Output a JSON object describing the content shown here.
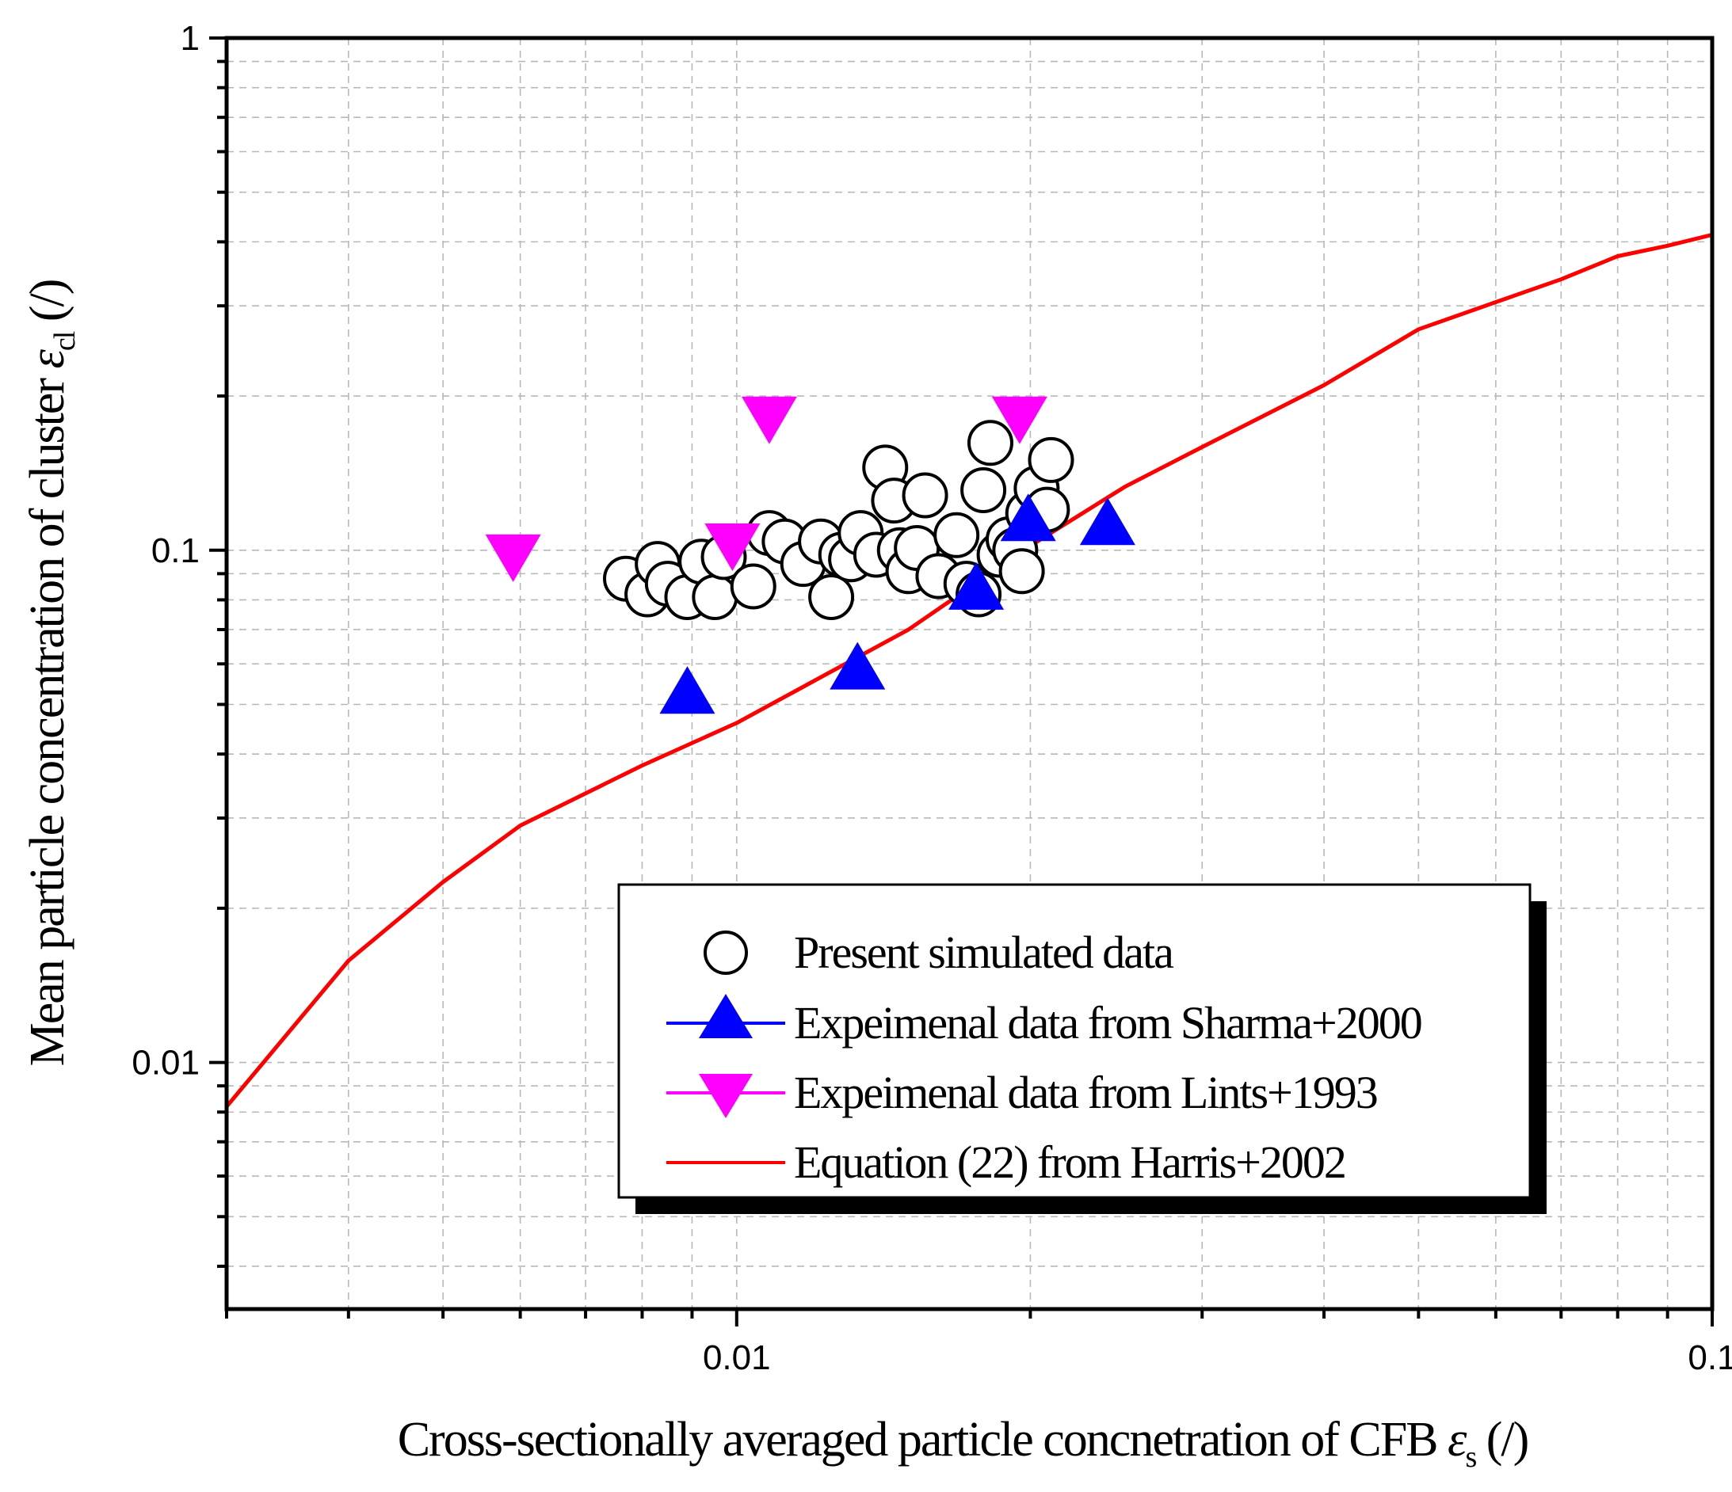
{
  "chart_data": {
    "type": "scatter",
    "xscale": "log",
    "yscale": "log",
    "xlim": [
      0.003,
      0.1
    ],
    "ylim": [
      0.0033,
      1
    ],
    "xlabel": {
      "main": "Cross-sectionally averaged particle concnetration of CFB ",
      "symbol": "ε",
      "subscript": "s",
      "unit": " (/)"
    },
    "ylabel": {
      "main": "Mean particle concentration of cluster ",
      "symbol": "ε",
      "subscript": "cl",
      "unit": " (/)"
    },
    "xticks": [
      {
        "value": 0.01,
        "label": "0.01"
      },
      {
        "value": 0.1,
        "label": "0.1"
      }
    ],
    "yticks": [
      {
        "value": 0.01,
        "label": "0.01"
      },
      {
        "value": 0.1,
        "label": "0.1"
      },
      {
        "value": 1,
        "label": "1"
      }
    ],
    "grid": true,
    "legend_position": "lower-right",
    "series": [
      {
        "name": "Present simulated data",
        "marker": "circle-open",
        "color": "#000000",
        "points": [
          [
            0.0077,
            0.088
          ],
          [
            0.0081,
            0.082
          ],
          [
            0.0083,
            0.094
          ],
          [
            0.0085,
            0.086
          ],
          [
            0.0089,
            0.081
          ],
          [
            0.0092,
            0.095
          ],
          [
            0.0095,
            0.081
          ],
          [
            0.0097,
            0.097
          ],
          [
            0.0104,
            0.085
          ],
          [
            0.0108,
            0.108
          ],
          [
            0.0112,
            0.104
          ],
          [
            0.0117,
            0.094
          ],
          [
            0.0122,
            0.104
          ],
          [
            0.0125,
            0.081
          ],
          [
            0.0128,
            0.098
          ],
          [
            0.0131,
            0.096
          ],
          [
            0.0134,
            0.108
          ],
          [
            0.0139,
            0.098
          ],
          [
            0.0142,
            0.145
          ],
          [
            0.0145,
            0.125
          ],
          [
            0.0147,
            0.1
          ],
          [
            0.015,
            0.091
          ],
          [
            0.0153,
            0.101
          ],
          [
            0.0156,
            0.128
          ],
          [
            0.0161,
            0.089
          ],
          [
            0.0168,
            0.107
          ],
          [
            0.0172,
            0.086
          ],
          [
            0.0177,
            0.082
          ],
          [
            0.0179,
            0.131
          ],
          [
            0.0182,
            0.162
          ],
          [
            0.0186,
            0.098
          ],
          [
            0.019,
            0.105
          ],
          [
            0.0193,
            0.1
          ],
          [
            0.0196,
            0.091
          ],
          [
            0.0199,
            0.118
          ],
          [
            0.0203,
            0.132
          ],
          [
            0.0208,
            0.12
          ],
          [
            0.021,
            0.15
          ]
        ]
      },
      {
        "name": "Expeimenal data from Sharma+2000",
        "marker": "triangle-up",
        "color": "#0000ff",
        "points": [
          [
            0.0089,
            0.052
          ],
          [
            0.0133,
            0.058
          ],
          [
            0.0176,
            0.083
          ],
          [
            0.0199,
            0.113
          ],
          [
            0.024,
            0.111
          ]
        ]
      },
      {
        "name": "Expeimenal data from Lints+1993",
        "marker": "triangle-down",
        "color": "#ff00ff",
        "points": [
          [
            0.0059,
            0.099
          ],
          [
            0.0099,
            0.104
          ],
          [
            0.0108,
            0.184
          ],
          [
            0.0195,
            0.184
          ]
        ]
      },
      {
        "name": "Equation (22)  from Harris+2002",
        "marker": "line",
        "color": "#ff0000",
        "points": [
          [
            0.003,
            0.0082
          ],
          [
            0.004,
            0.0158
          ],
          [
            0.005,
            0.0225
          ],
          [
            0.006,
            0.029
          ],
          [
            0.008,
            0.038
          ],
          [
            0.01,
            0.046
          ],
          [
            0.015,
            0.07
          ],
          [
            0.02,
            0.102
          ],
          [
            0.025,
            0.133
          ],
          [
            0.03,
            0.159
          ],
          [
            0.04,
            0.21
          ],
          [
            0.05,
            0.27
          ],
          [
            0.06,
            0.305
          ],
          [
            0.07,
            0.338
          ],
          [
            0.08,
            0.375
          ],
          [
            0.09,
            0.393
          ],
          [
            0.1,
            0.413
          ]
        ]
      }
    ]
  }
}
